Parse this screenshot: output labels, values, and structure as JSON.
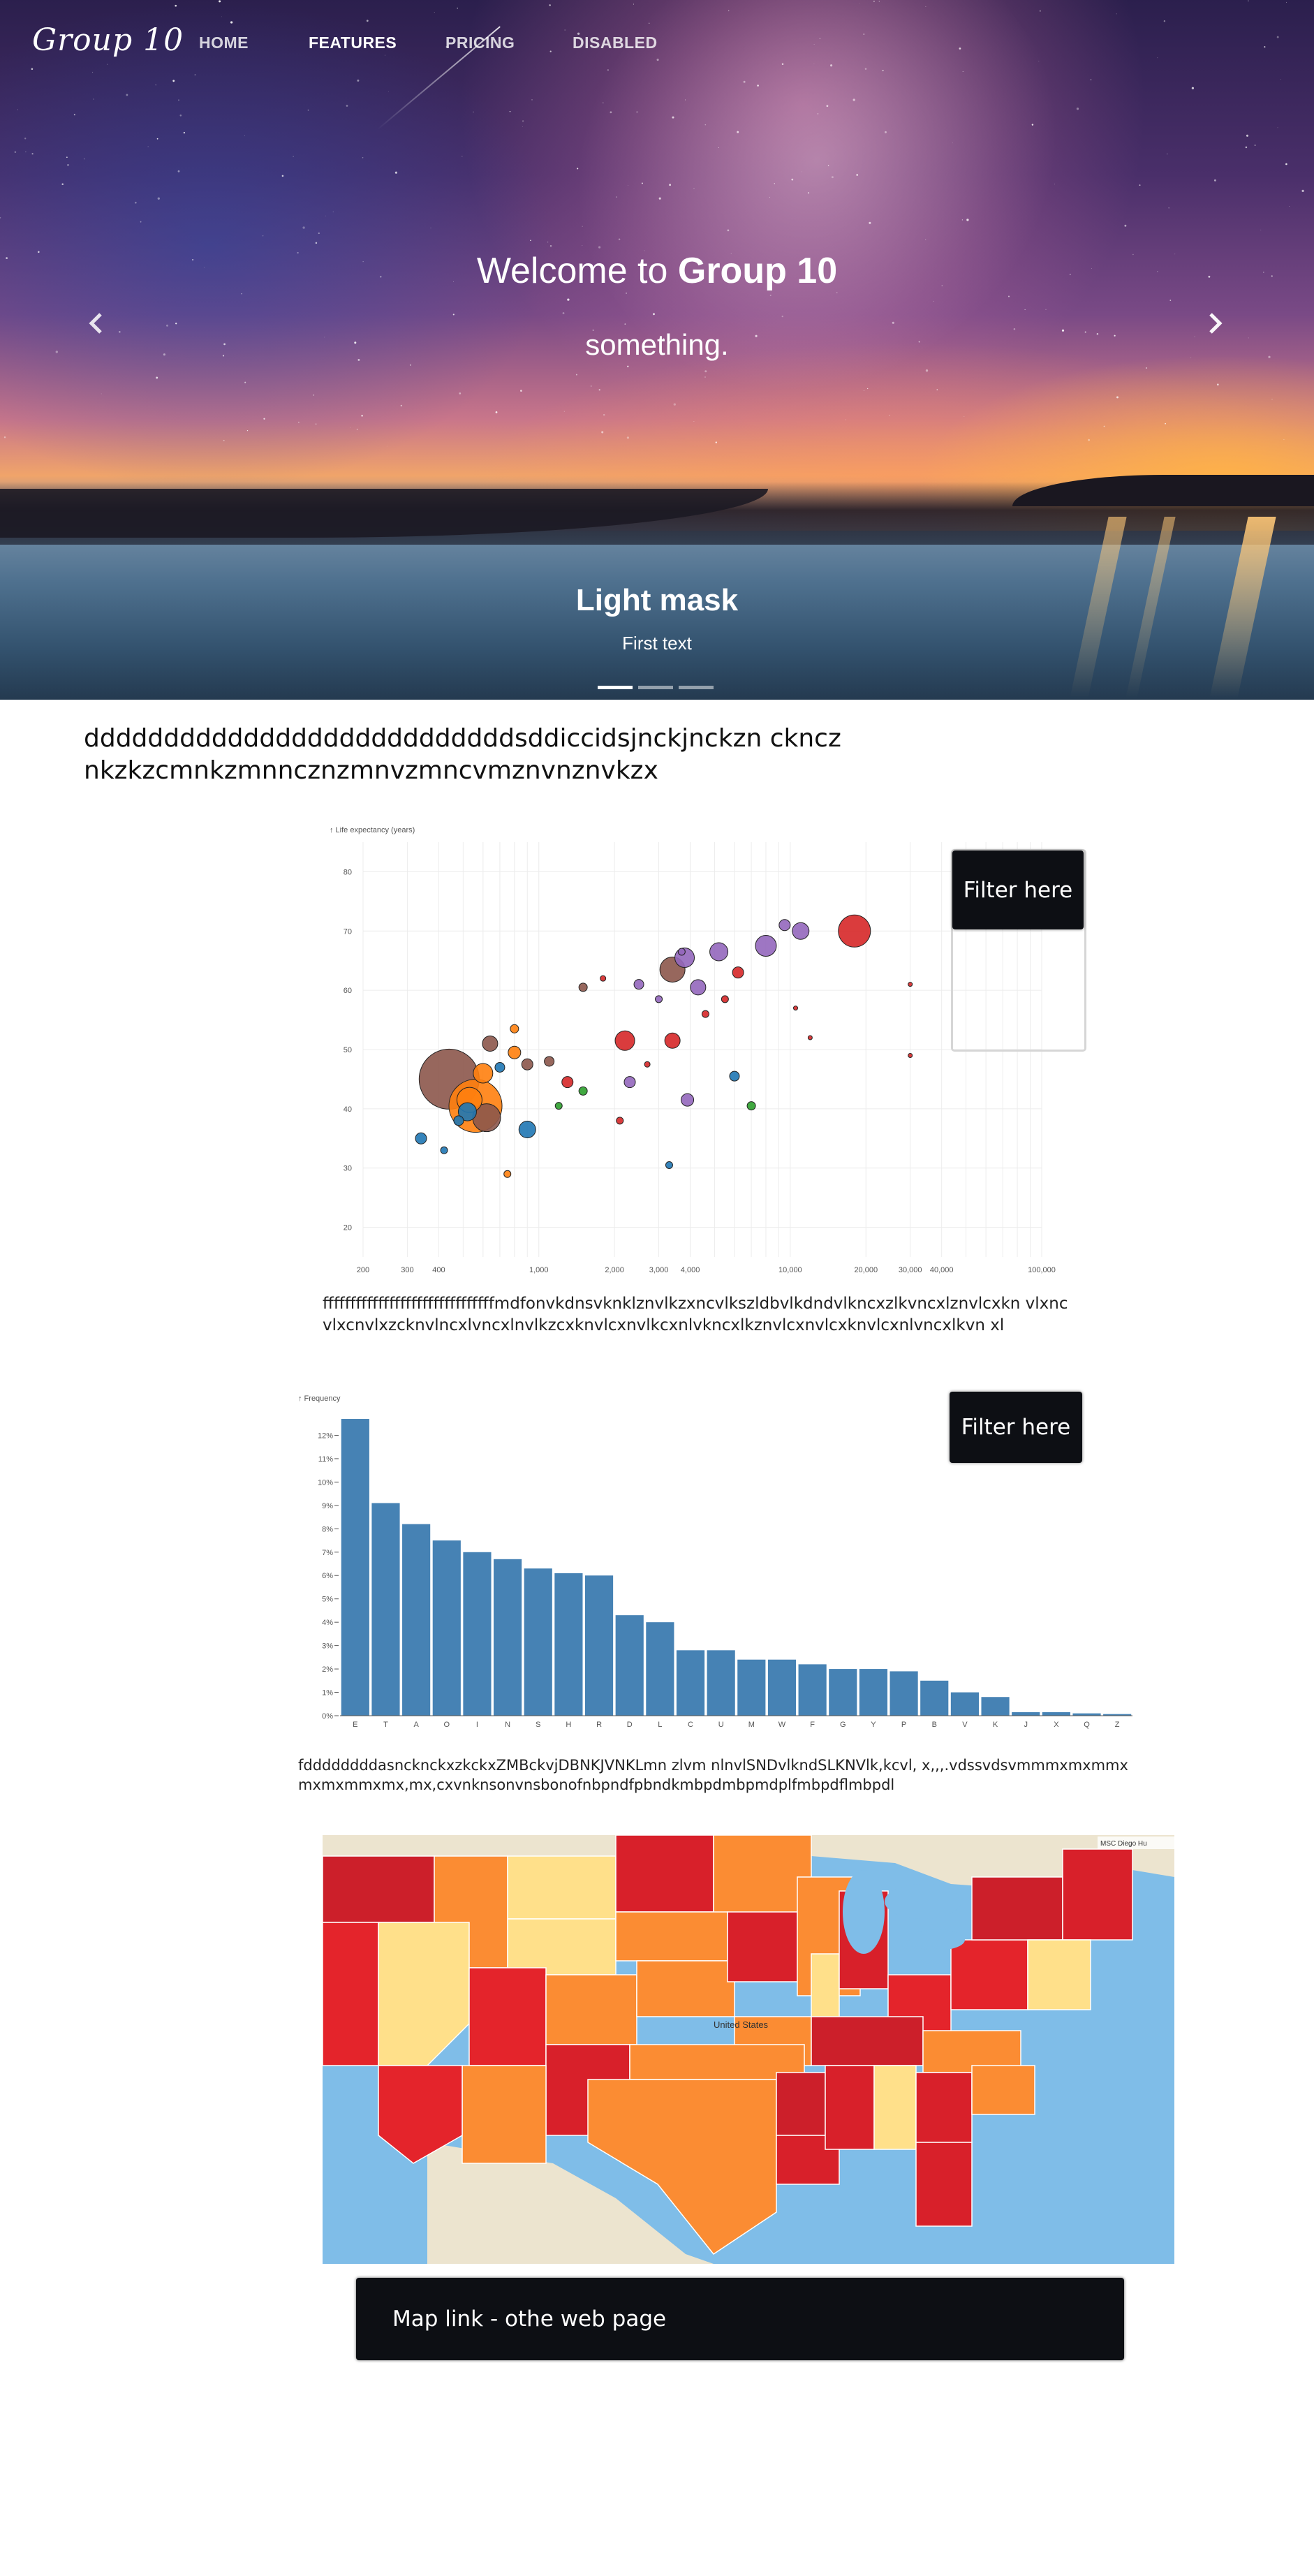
{
  "brand": "Group 10",
  "nav": {
    "home": "HOME",
    "features": "FEATURES",
    "pricing": "PRICING",
    "disabled": "DISABLED"
  },
  "hero": {
    "title_prefix": "Welcome to ",
    "title_bold": "Group 10",
    "subtitle": "something.",
    "caption_title": "Light mask",
    "caption_text": "First text",
    "slides": 3,
    "active_slide": 1
  },
  "content": {
    "paragraph_1": "dddddddddddddddddddddddddddsddiccidsjnckjnckzn ckncznkzkzcmnkzmnncznzmnvzmncvmznvnznvkzx",
    "paragraph_2": "fffffffffffffffffffffffffffffffmdfonvkdnsvknklznvlkzxncvlkszldbvlkdndvlkncxzlkvncxlznvlcxkn vlxncvlxcnvlxzcknvlncxlvncxlnvlkzcxknvlcxnvlkcxnlvkncxlkznvlcxnvlcxknvlcxnlvncxlkvn xl",
    "paragraph_3": "fddddddddasncknckxzkckxZMBckvjDBNKJVNKLmn zlvm nlnvlSNDvlkndSLKNVlk,kcvl, x,,,.vdssvdsvmmmxmxmmxmxmxmmxmx,mx,cxvnknsonvnsbonofnbpndfpbndkmbpdmbpmdplfmbpdflmbpdl"
  },
  "filter_label": "Filter here",
  "map_link_label": "Map link - othe web page",
  "map": {
    "attribution": "MSC Diego Hu",
    "country_label": "United States"
  },
  "colors": {
    "bar": "#4682b4",
    "filter_bg": "#0d0f14",
    "map_water": "#7fbde8"
  },
  "chart_data": [
    {
      "type": "scatter",
      "ylabel": "↑ Life expectancy (years)",
      "xscale": "log",
      "x_ticks": [
        "200",
        "300",
        "400",
        "1,000",
        "2,000",
        "3,000",
        "4,000",
        "10,000",
        "20,000",
        "30,000",
        "40,000",
        "100,000"
      ],
      "x_tick_values": [
        200,
        300,
        400,
        1000,
        2000,
        3000,
        4000,
        10000,
        20000,
        30000,
        40000,
        100000
      ],
      "y_ticks": [
        "20",
        "30",
        "40",
        "50",
        "60",
        "70",
        "80"
      ],
      "xlim": [
        200,
        100000
      ],
      "ylim": [
        15,
        85
      ],
      "points": [
        {
          "x": 440,
          "y": 45,
          "r": 43,
          "c": "#8c564b"
        },
        {
          "x": 560,
          "y": 40.5,
          "r": 38,
          "c": "#ff7f0e"
        },
        {
          "x": 620,
          "y": 38.5,
          "r": 20,
          "c": "#8c564b"
        },
        {
          "x": 530,
          "y": 41.5,
          "r": 18,
          "c": "#ff7f0e"
        },
        {
          "x": 600,
          "y": 46,
          "r": 14,
          "c": "#ff7f0e"
        },
        {
          "x": 520,
          "y": 39.5,
          "r": 13,
          "c": "#1f77b4"
        },
        {
          "x": 900,
          "y": 36.5,
          "r": 12,
          "c": "#1f77b4"
        },
        {
          "x": 640,
          "y": 51,
          "r": 11,
          "c": "#8c564b"
        },
        {
          "x": 800,
          "y": 49.5,
          "r": 9,
          "c": "#ff7f0e"
        },
        {
          "x": 2200,
          "y": 51.5,
          "r": 14,
          "c": "#d62728"
        },
        {
          "x": 3400,
          "y": 51.5,
          "r": 11,
          "c": "#d62728"
        },
        {
          "x": 3400,
          "y": 63.5,
          "r": 18,
          "c": "#8c564b"
        },
        {
          "x": 3800,
          "y": 65.5,
          "r": 14,
          "c": "#9467bd"
        },
        {
          "x": 5200,
          "y": 66.5,
          "r": 13,
          "c": "#9467bd"
        },
        {
          "x": 8000,
          "y": 67.5,
          "r": 15,
          "c": "#9467bd"
        },
        {
          "x": 11000,
          "y": 70,
          "r": 12,
          "c": "#9467bd"
        },
        {
          "x": 18000,
          "y": 70,
          "r": 23,
          "c": "#d62728"
        },
        {
          "x": 4300,
          "y": 60.5,
          "r": 11,
          "c": "#9467bd"
        },
        {
          "x": 6200,
          "y": 63,
          "r": 8,
          "c": "#d62728"
        },
        {
          "x": 1300,
          "y": 44.5,
          "r": 8,
          "c": "#d62728"
        },
        {
          "x": 3900,
          "y": 41.5,
          "r": 9,
          "c": "#9467bd"
        },
        {
          "x": 6000,
          "y": 45.5,
          "r": 7,
          "c": "#1f77b4"
        },
        {
          "x": 2300,
          "y": 44.5,
          "r": 8,
          "c": "#9467bd"
        },
        {
          "x": 900,
          "y": 47.5,
          "r": 8,
          "c": "#8c564b"
        },
        {
          "x": 1100,
          "y": 48,
          "r": 7,
          "c": "#8c564b"
        },
        {
          "x": 700,
          "y": 47,
          "r": 7,
          "c": "#1f77b4"
        },
        {
          "x": 480,
          "y": 38,
          "r": 7,
          "c": "#1f77b4"
        },
        {
          "x": 340,
          "y": 35,
          "r": 8,
          "c": "#1f77b4"
        },
        {
          "x": 1500,
          "y": 43,
          "r": 6,
          "c": "#2ca02c"
        },
        {
          "x": 7000,
          "y": 40.5,
          "r": 6,
          "c": "#2ca02c"
        },
        {
          "x": 2500,
          "y": 61,
          "r": 7,
          "c": "#9467bd"
        },
        {
          "x": 1500,
          "y": 60.5,
          "r": 6,
          "c": "#8c564b"
        },
        {
          "x": 800,
          "y": 53.5,
          "r": 6,
          "c": "#ff7f0e"
        },
        {
          "x": 750,
          "y": 29,
          "r": 5,
          "c": "#ff7f0e"
        },
        {
          "x": 3300,
          "y": 30.5,
          "r": 5,
          "c": "#1f77b4"
        },
        {
          "x": 4600,
          "y": 56,
          "r": 5,
          "c": "#d62728"
        },
        {
          "x": 5500,
          "y": 58.5,
          "r": 5,
          "c": "#d62728"
        },
        {
          "x": 9500,
          "y": 71,
          "r": 8,
          "c": "#9467bd"
        },
        {
          "x": 3000,
          "y": 58.5,
          "r": 5,
          "c": "#9467bd"
        },
        {
          "x": 2100,
          "y": 38,
          "r": 5,
          "c": "#d62728"
        },
        {
          "x": 1200,
          "y": 40.5,
          "r": 5,
          "c": "#2ca02c"
        },
        {
          "x": 420,
          "y": 33,
          "r": 5,
          "c": "#1f77b4"
        },
        {
          "x": 2700,
          "y": 47.5,
          "r": 4,
          "c": "#d62728"
        },
        {
          "x": 3700,
          "y": 66.5,
          "r": 5,
          "c": "#9467bd"
        },
        {
          "x": 1800,
          "y": 62,
          "r": 4,
          "c": "#d62728"
        },
        {
          "x": 10500,
          "y": 57,
          "r": 3,
          "c": "#d62728"
        },
        {
          "x": 12000,
          "y": 52,
          "r": 3,
          "c": "#d62728"
        },
        {
          "x": 30000,
          "y": 61,
          "r": 3,
          "c": "#d62728"
        },
        {
          "x": 30000,
          "y": 49,
          "r": 3,
          "c": "#d62728"
        }
      ]
    },
    {
      "type": "bar",
      "ylabel": "↑ Frequency",
      "categories": [
        "E",
        "T",
        "A",
        "O",
        "I",
        "N",
        "S",
        "H",
        "R",
        "D",
        "L",
        "C",
        "U",
        "M",
        "W",
        "F",
        "G",
        "Y",
        "P",
        "B",
        "V",
        "K",
        "J",
        "X",
        "Q",
        "Z"
      ],
      "values": [
        12.7,
        9.1,
        8.2,
        7.5,
        7.0,
        6.7,
        6.3,
        6.1,
        6.0,
        4.3,
        4.0,
        2.8,
        2.8,
        2.4,
        2.4,
        2.2,
        2.0,
        2.0,
        1.9,
        1.5,
        1.0,
        0.8,
        0.15,
        0.15,
        0.1,
        0.07
      ],
      "y_ticks": [
        "0%",
        "1%",
        "2%",
        "3%",
        "4%",
        "5%",
        "6%",
        "7%",
        "8%",
        "9%",
        "10%",
        "11%",
        "12%"
      ],
      "ylim": [
        0,
        13
      ]
    }
  ]
}
